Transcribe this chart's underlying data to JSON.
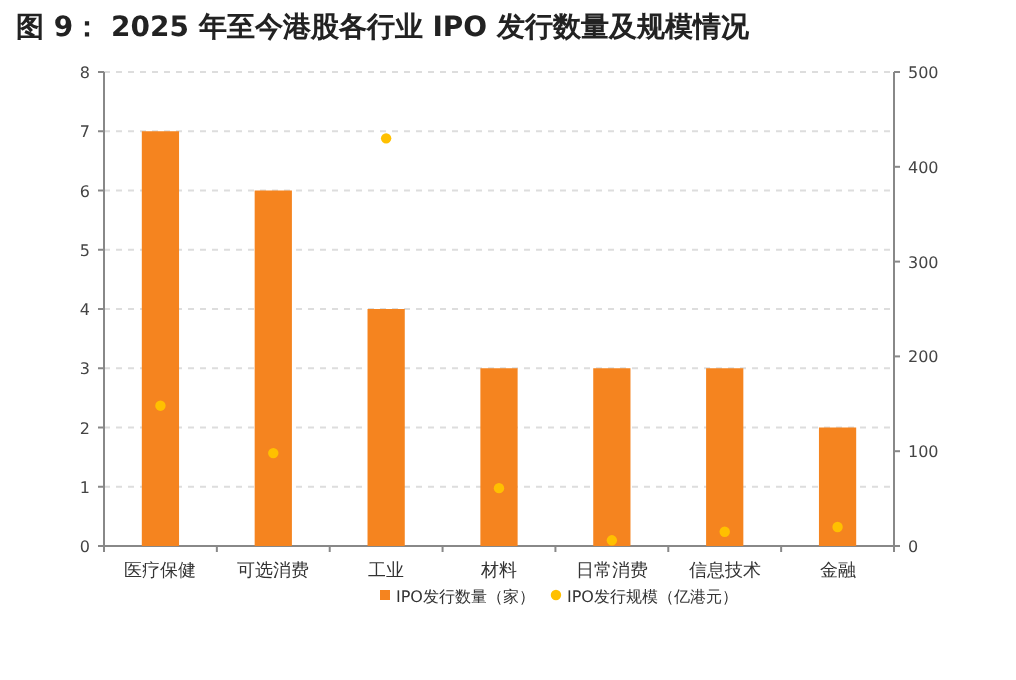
{
  "chart_data": {
    "type": "bar",
    "title": "图 9： 2025 年至今港股各行业 IPO 发行数量及规模情况",
    "categories": [
      "医疗保健",
      "可选消费",
      "工业",
      "材料",
      "日常消费",
      "信息技术",
      "金融"
    ],
    "series": [
      {
        "name": "IPO发行数量（家）",
        "color": "#f5841f",
        "values": [
          7,
          6,
          4,
          3,
          3,
          3,
          2
        ]
      },
      {
        "name": "IPO发行规模（亿港元）",
        "type": "scatter",
        "axis": "y2",
        "color": "#ffc000",
        "values": [
          148,
          98,
          430,
          61,
          6,
          15,
          20
        ]
      }
    ],
    "ylim": [
      0,
      8
    ],
    "yticks": [
      0,
      1,
      2,
      3,
      4,
      5,
      6,
      7,
      8
    ],
    "y2lim": [
      0,
      500
    ],
    "y2ticks": [
      0,
      100,
      200,
      300,
      400,
      500
    ],
    "grid": "y",
    "legend": "bottom",
    "marker": "circle"
  }
}
